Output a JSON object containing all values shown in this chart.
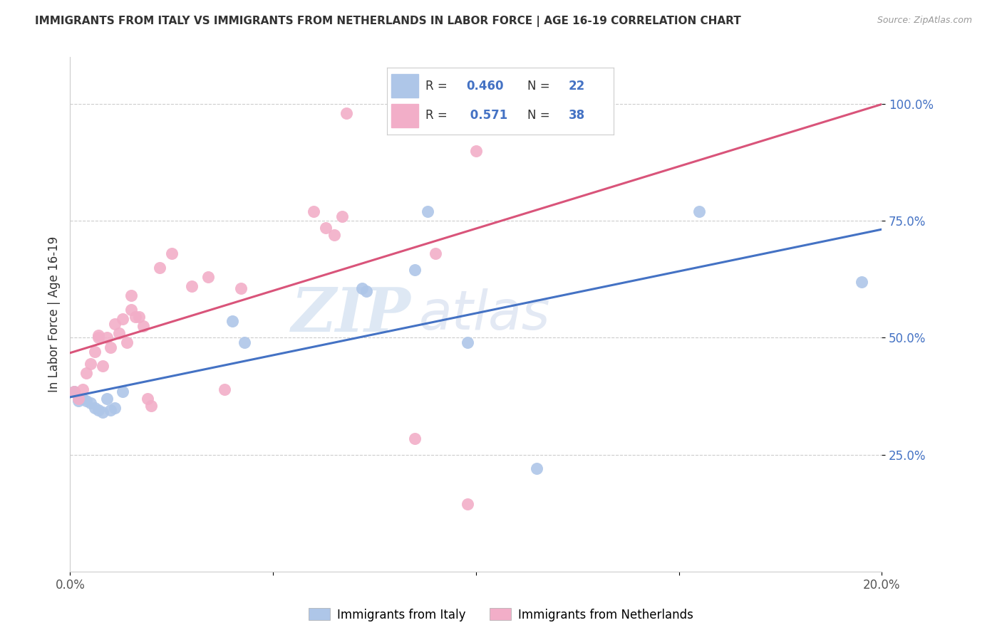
{
  "title": "IMMIGRANTS FROM ITALY VS IMMIGRANTS FROM NETHERLANDS IN LABOR FORCE | AGE 16-19 CORRELATION CHART",
  "source": "Source: ZipAtlas.com",
  "ylabel": "In Labor Force | Age 16-19",
  "xlim": [
    0.0,
    0.2
  ],
  "ylim": [
    0.0,
    1.1
  ],
  "yticks": [
    0.25,
    0.5,
    0.75,
    1.0
  ],
  "ytick_labels": [
    "25.0%",
    "50.0%",
    "75.0%",
    "100.0%"
  ],
  "xticks": [
    0.0,
    0.05,
    0.1,
    0.15,
    0.2
  ],
  "xtick_labels": [
    "0.0%",
    "",
    "",
    "",
    "20.0%"
  ],
  "watermark_zip": "ZIP",
  "watermark_atlas": "atlas",
  "legend_italy_R": "0.460",
  "legend_italy_N": "22",
  "legend_netherlands_R": "0.571",
  "legend_netherlands_N": "38",
  "italy_color": "#aec6e8",
  "netherlands_color": "#f2aec8",
  "line_italy_color": "#4472c4",
  "line_netherlands_color": "#d9547a",
  "italy_x": [
    0.001,
    0.002,
    0.003,
    0.004,
    0.005,
    0.006,
    0.007,
    0.008,
    0.009,
    0.01,
    0.011,
    0.013,
    0.04,
    0.043,
    0.072,
    0.073,
    0.085,
    0.088,
    0.098,
    0.115,
    0.155,
    0.195
  ],
  "italy_y": [
    0.385,
    0.365,
    0.37,
    0.365,
    0.36,
    0.35,
    0.345,
    0.34,
    0.37,
    0.345,
    0.35,
    0.385,
    0.535,
    0.49,
    0.605,
    0.6,
    0.645,
    0.77,
    0.49,
    0.22,
    0.77,
    0.62
  ],
  "netherlands_x": [
    0.001,
    0.002,
    0.003,
    0.004,
    0.005,
    0.006,
    0.007,
    0.007,
    0.008,
    0.009,
    0.01,
    0.011,
    0.012,
    0.013,
    0.014,
    0.015,
    0.015,
    0.016,
    0.017,
    0.018,
    0.019,
    0.02,
    0.022,
    0.025,
    0.03,
    0.034,
    0.038,
    0.042,
    0.06,
    0.063,
    0.065,
    0.067,
    0.068,
    0.085,
    0.09,
    0.097,
    0.098,
    0.1
  ],
  "netherlands_y": [
    0.385,
    0.37,
    0.39,
    0.425,
    0.445,
    0.47,
    0.5,
    0.505,
    0.44,
    0.5,
    0.48,
    0.53,
    0.51,
    0.54,
    0.49,
    0.59,
    0.56,
    0.545,
    0.545,
    0.525,
    0.37,
    0.355,
    0.65,
    0.68,
    0.61,
    0.63,
    0.39,
    0.605,
    0.77,
    0.735,
    0.72,
    0.76,
    0.98,
    0.285,
    0.68,
    0.99,
    0.145,
    0.9
  ]
}
